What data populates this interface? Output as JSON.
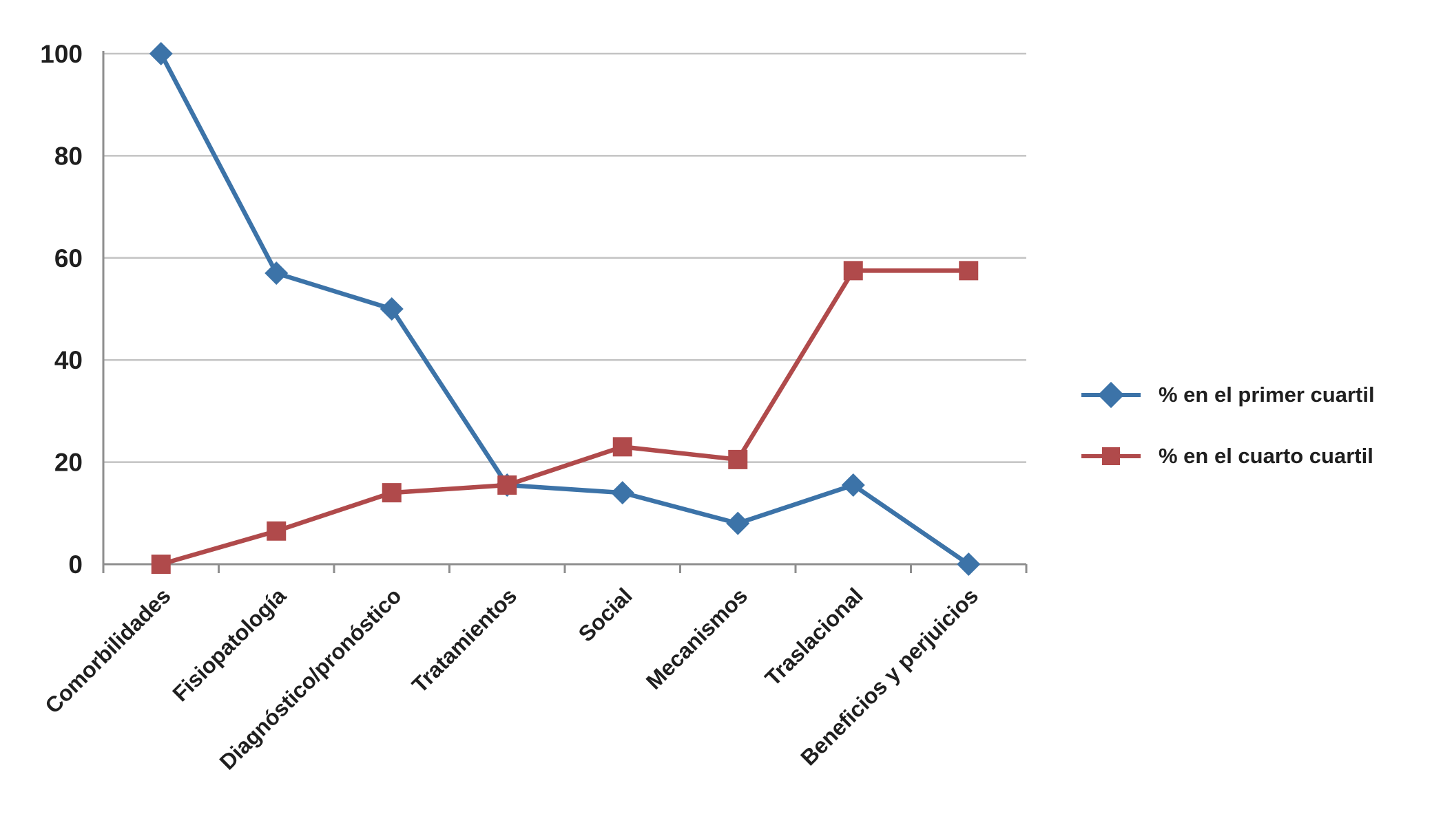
{
  "chart_data": {
    "type": "line",
    "categories": [
      "Comorbilidades",
      "Fisiopatología",
      "Diagnóstico/pronóstico",
      "Tratamientos",
      "Social",
      "Mecanismos",
      "Traslacional",
      "Beneficios y perjuicios"
    ],
    "series": [
      {
        "name": "% en el primer cuartil",
        "marker": "diamond",
        "color": "#3C73A8",
        "values": [
          100,
          57,
          50,
          15.5,
          14,
          8,
          15.5,
          0
        ]
      },
      {
        "name": "% en el cuarto cuartil",
        "marker": "square",
        "color": "#B04A4B",
        "values": [
          0,
          6.5,
          14,
          15.5,
          23,
          20.5,
          57.5,
          57.5
        ]
      }
    ],
    "title": "",
    "xlabel": "",
    "ylabel": "",
    "ylim": [
      0,
      100
    ],
    "ytick": 20,
    "grid": true,
    "legend_position": "right",
    "colors": {
      "grid": "#C3C3C3",
      "axis": "#8E8E8E",
      "tick_label": "#1F1F1F"
    }
  }
}
